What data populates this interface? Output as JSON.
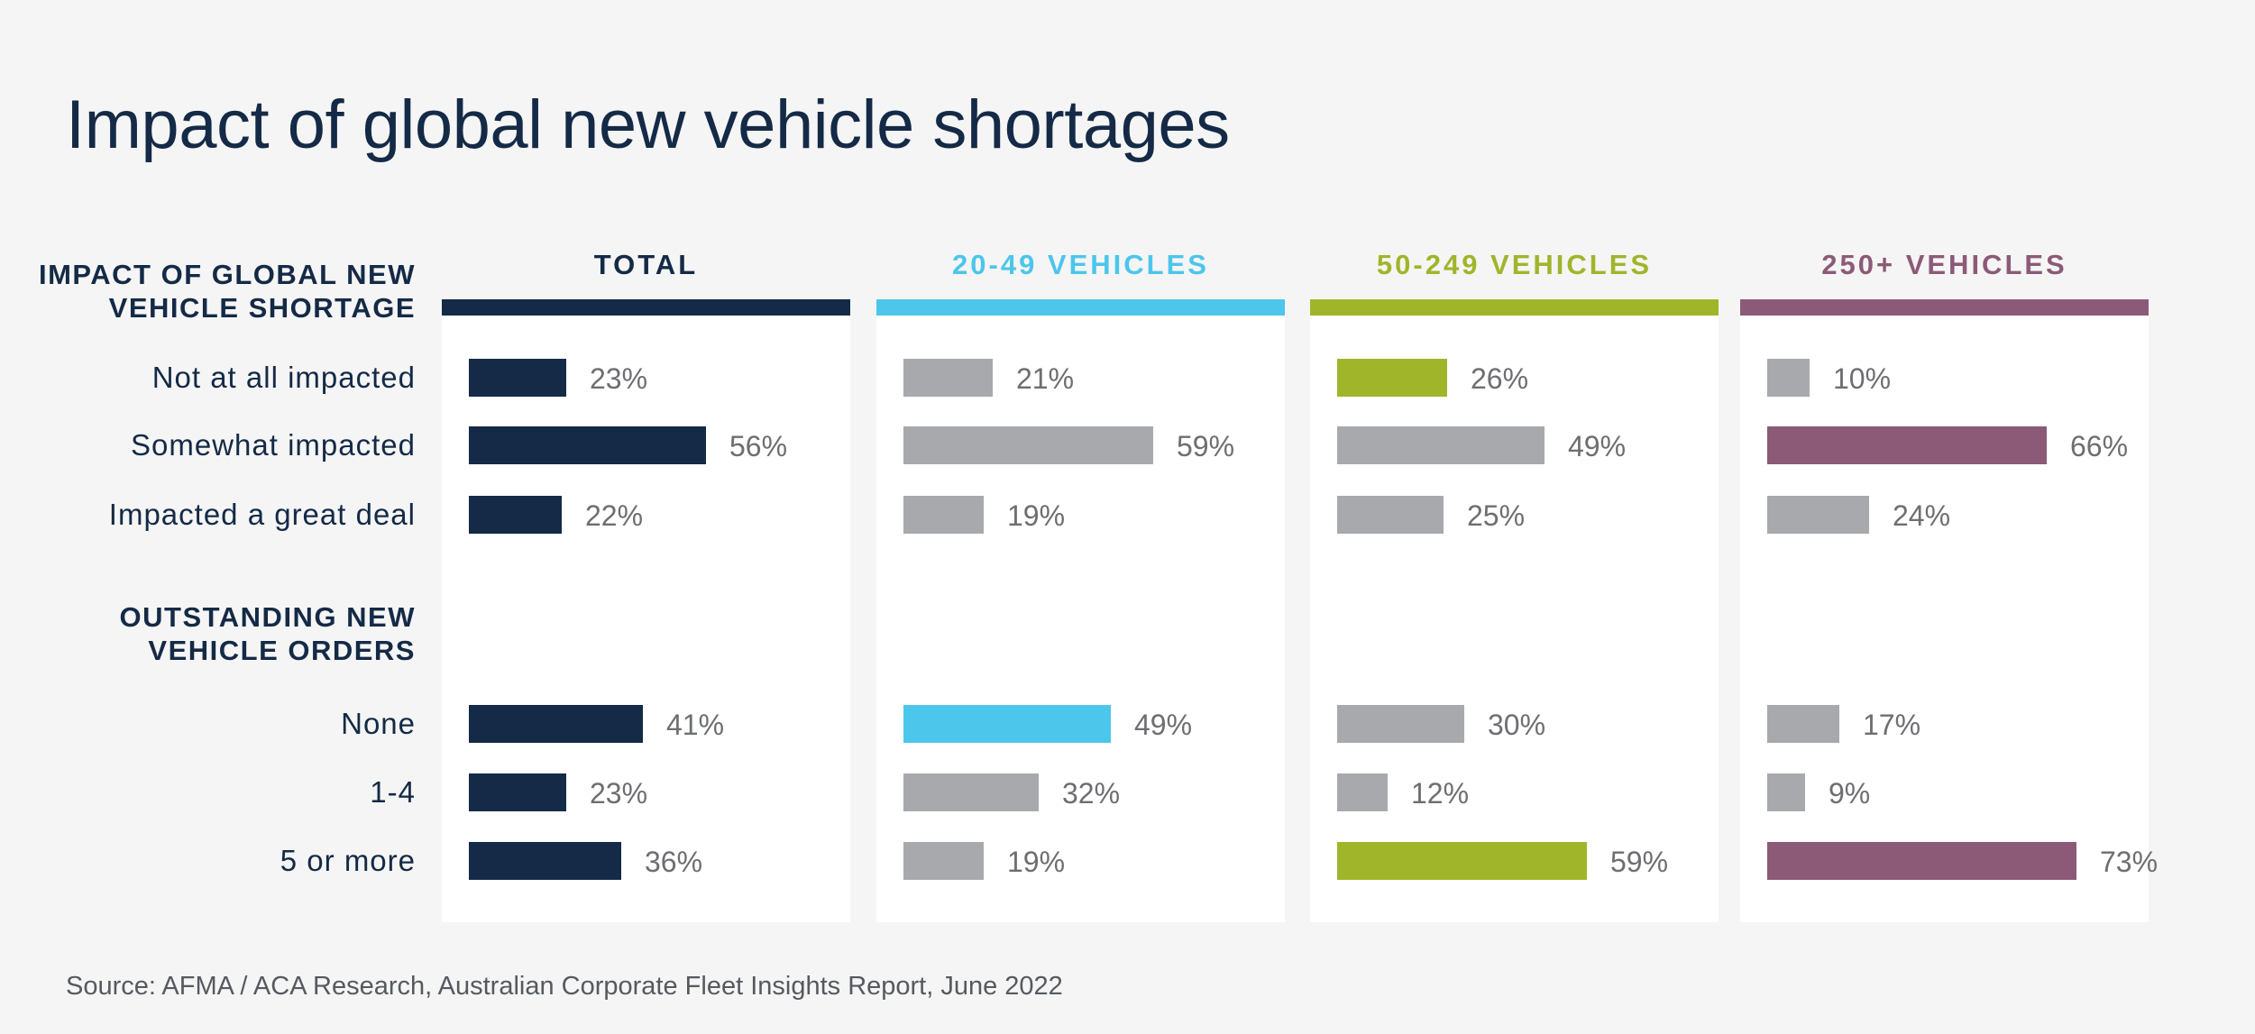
{
  "title": "Impact of global new vehicle shortages",
  "source": "Source: AFMA / ACA Research, Australian Corporate Fleet Insights Report, June 2022",
  "colors": {
    "navy": "#142a46",
    "cyan": "#4cc6eb",
    "lime": "#a1b52a",
    "plum": "#8c5a77",
    "grey": "#a8a9ad",
    "panel": "#ffffff",
    "background": "#f5f5f5"
  },
  "chart_data": {
    "type": "bar",
    "orientation": "horizontal",
    "title": "Impact of global new vehicle shortages",
    "xlim": [
      0,
      100
    ],
    "sections": [
      {
        "heading_lines": [
          "IMPACT OF GLOBAL NEW",
          "VEHICLE SHORTAGE"
        ],
        "categories": [
          "Not at all impacted",
          "Somewhat impacted",
          "Impacted a great deal"
        ]
      },
      {
        "heading_lines": [
          "OUTSTANDING NEW",
          "VEHICLE ORDERS"
        ],
        "categories": [
          "None",
          "1-4",
          "5 or more"
        ]
      }
    ],
    "series": [
      {
        "name": "TOTAL",
        "color": "#142a46",
        "header_text_color": "#142a46",
        "sections": [
          {
            "values": [
              23,
              56,
              22
            ],
            "labels": [
              "23%",
              "56%",
              "22%"
            ],
            "highlight": [
              true,
              true,
              true
            ]
          },
          {
            "values": [
              41,
              23,
              36
            ],
            "labels": [
              "41%",
              "23%",
              "36%"
            ],
            "highlight": [
              true,
              true,
              true
            ]
          }
        ]
      },
      {
        "name": "20-49 VEHICLES",
        "color": "#4cc6eb",
        "header_text_color": "#4cc6eb",
        "sections": [
          {
            "values": [
              21,
              59,
              19
            ],
            "labels": [
              "21%",
              "59%",
              "19%"
            ],
            "highlight": [
              false,
              false,
              false
            ]
          },
          {
            "values": [
              49,
              32,
              19
            ],
            "labels": [
              "49%",
              "32%",
              "19%"
            ],
            "highlight": [
              true,
              false,
              false
            ]
          }
        ]
      },
      {
        "name": "50-249 VEHICLES",
        "color": "#a1b52a",
        "header_text_color": "#a1b52a",
        "sections": [
          {
            "values": [
              26,
              49,
              25
            ],
            "labels": [
              "26%",
              "49%",
              "25%"
            ],
            "highlight": [
              true,
              false,
              false
            ]
          },
          {
            "values": [
              30,
              12,
              59
            ],
            "labels": [
              "30%",
              "12%",
              "59%"
            ],
            "highlight": [
              false,
              false,
              true
            ]
          }
        ]
      },
      {
        "name": "250+ VEHICLES",
        "color": "#8c5a77",
        "header_text_color": "#8c5a77",
        "sections": [
          {
            "values": [
              10,
              66,
              24
            ],
            "labels": [
              "10%",
              "66%",
              "24%"
            ],
            "highlight": [
              false,
              true,
              false
            ]
          },
          {
            "values": [
              17,
              9,
              73
            ],
            "labels": [
              "17%",
              "9%",
              "73%"
            ],
            "highlight": [
              false,
              false,
              true
            ]
          }
        ]
      }
    ]
  }
}
